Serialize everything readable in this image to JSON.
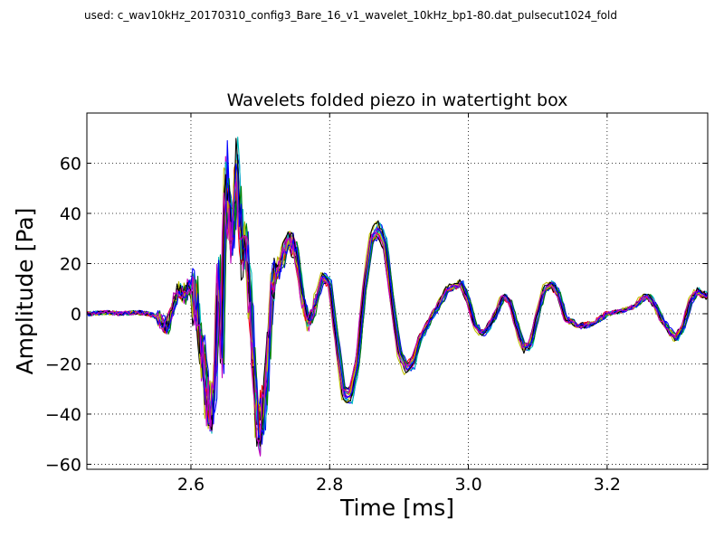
{
  "header": {
    "used_text": "used: c_wav10kHz_20170310_config3_Bare_16_v1_wavelet_10kHz_bp1-80.dat_pulsecut1024_fold"
  },
  "chart_data": {
    "type": "line",
    "title": "Wavelets folded piezo in watertight box",
    "xlabel": "Time [ms]",
    "ylabel": "Amplitude [Pa]",
    "xlim": [
      2.45,
      3.345
    ],
    "ylim": [
      -62,
      80
    ],
    "xticks": [
      2.6,
      2.8,
      3.0,
      3.2
    ],
    "xtick_labels": [
      "2.6",
      "2.8",
      "3.0",
      "3.2"
    ],
    "yticks": [
      -60,
      -40,
      -20,
      0,
      20,
      40,
      60
    ],
    "ytick_labels": [
      "−60",
      "−40",
      "−20",
      "0",
      "20",
      "40",
      "60"
    ],
    "grid": true,
    "grid_style": "dotted",
    "base_waveform": {
      "x": [
        2.45,
        2.48,
        2.5,
        2.52,
        2.54,
        2.555,
        2.565,
        2.57,
        2.575,
        2.58,
        2.585,
        2.59,
        2.595,
        2.6,
        2.605,
        2.61,
        2.615,
        2.62,
        2.625,
        2.63,
        2.635,
        2.64,
        2.645,
        2.65,
        2.655,
        2.66,
        2.665,
        2.67,
        2.675,
        2.68,
        2.685,
        2.69,
        2.695,
        2.7,
        2.705,
        2.71,
        2.715,
        2.72,
        2.73,
        2.74,
        2.75,
        2.76,
        2.77,
        2.78,
        2.79,
        2.8,
        2.81,
        2.82,
        2.83,
        2.84,
        2.85,
        2.86,
        2.87,
        2.88,
        2.89,
        2.9,
        2.91,
        2.92,
        2.93,
        2.95,
        2.97,
        2.99,
        3.0,
        3.01,
        3.02,
        3.03,
        3.04,
        3.05,
        3.06,
        3.07,
        3.08,
        3.09,
        3.1,
        3.11,
        3.12,
        3.13,
        3.14,
        3.16,
        3.18,
        3.2,
        3.22,
        3.24,
        3.25,
        3.26,
        3.27,
        3.28,
        3.29,
        3.3,
        3.31,
        3.32,
        3.33,
        3.345
      ],
      "y": [
        0,
        0.5,
        0,
        0.5,
        0,
        -2,
        -6,
        -2,
        3,
        8,
        10,
        6,
        11,
        10,
        6,
        2,
        -15,
        -25,
        -35,
        -40,
        -28,
        20,
        -20,
        55,
        40,
        30,
        60,
        40,
        25,
        28,
        10,
        -20,
        -40,
        -48,
        -35,
        -20,
        5,
        15,
        20,
        30,
        27,
        8,
        -5,
        5,
        15,
        12,
        -10,
        -32,
        -33,
        -20,
        10,
        30,
        34,
        28,
        5,
        -15,
        -22,
        -20,
        -10,
        0,
        10,
        12,
        5,
        -5,
        -8,
        -5,
        0,
        7,
        5,
        -5,
        -14,
        -12,
        0,
        10,
        12,
        8,
        -2,
        -5,
        -4,
        0,
        1,
        3,
        6,
        7,
        3,
        -3,
        -7,
        -10,
        -5,
        5,
        9,
        7
      ]
    },
    "series_count": 16,
    "series_colors": [
      "#0000ff",
      "#007f00",
      "#ff0000",
      "#00bfbf",
      "#bf00bf",
      "#bfbf00",
      "#000000",
      "#0000ff",
      "#007f00",
      "#ff0000",
      "#00bfbf",
      "#bf00bf",
      "#bfbf00",
      "#000000",
      "#0000ff",
      "#bf00bf"
    ]
  }
}
